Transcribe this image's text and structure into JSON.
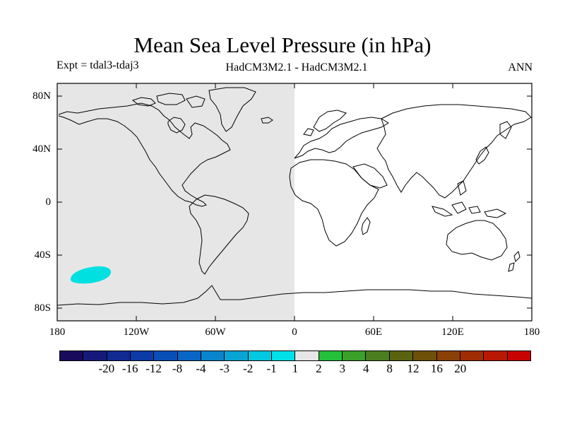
{
  "title": "Mean Sea Level Pressure (in hPa)",
  "expt": "Expt = tdal3-tdaj3",
  "model": "HadCM3M2.1 - HadCM3M2.1",
  "season": "ANN",
  "map": {
    "projection": "cylindrical-equidistant",
    "lon_range": [
      -180,
      180
    ],
    "lat_range": [
      -90,
      90
    ],
    "grey_region": {
      "lon": [
        -180,
        0
      ],
      "color": "#e6e6e6"
    },
    "anomaly": {
      "lon_center": -155,
      "lat_center": -58,
      "color": "#00e0e0",
      "level": "-2 to -1"
    }
  },
  "yticks": [
    "80N",
    "40N",
    "0",
    "40S",
    "80S"
  ],
  "xticks": [
    "180",
    "120W",
    "60W",
    "0",
    "60E",
    "120E",
    "180"
  ],
  "colorbar": {
    "colors": [
      "#1a0a5c",
      "#151a7a",
      "#102a92",
      "#0c3aa6",
      "#0a4eb8",
      "#0a66c4",
      "#0a84cc",
      "#08a4d4",
      "#04c8e0",
      "#00e0e8",
      "#e6e6e6",
      "#24c03a",
      "#3aa02a",
      "#4a7e1e",
      "#5a6410",
      "#6e5008",
      "#8a4006",
      "#a02c04",
      "#b81804",
      "#c80402"
    ],
    "labels": [
      "-20",
      "-16",
      "-12",
      "-8",
      "-4",
      "-3",
      "-2",
      "-1",
      "1",
      "2",
      "3",
      "4",
      "8",
      "12",
      "16",
      "20"
    ]
  }
}
